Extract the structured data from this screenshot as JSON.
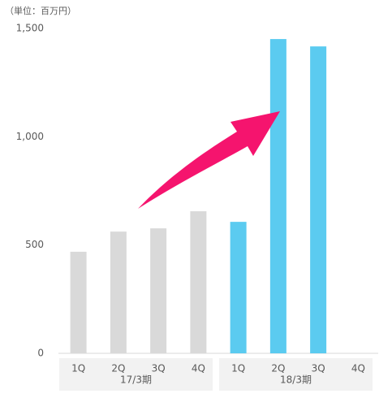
{
  "chart_data": {
    "type": "grouped-bar",
    "unit_label": "（単位：百万円）",
    "groups": [
      {
        "name": "17/3期",
        "color": "#d9d9d9",
        "categories": [
          "1Q",
          "2Q",
          "3Q",
          "4Q"
        ],
        "values": [
          469,
          562,
          577,
          656
        ]
      },
      {
        "name": "18/3期",
        "color": "#5bcbf0",
        "categories": [
          "1Q",
          "2Q",
          "3Q",
          "4Q"
        ],
        "values": [
          607,
          1451,
          1417,
          null
        ]
      }
    ],
    "ylim": [
      0,
      1500
    ],
    "yticks": [
      0,
      500,
      {
        "value": 1000,
        "label": "1,000"
      },
      {
        "value": 1500,
        "label": "1,500"
      }
    ],
    "grid": false
  }
}
